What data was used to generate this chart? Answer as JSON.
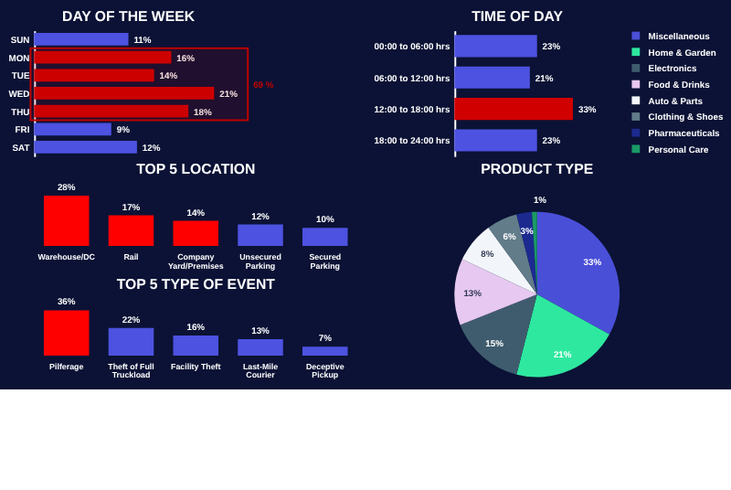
{
  "chart_data": [
    {
      "type": "bar",
      "orientation": "horizontal",
      "title": "DAY OF THE WEEK",
      "categories": [
        "SUN",
        "MON",
        "TUE",
        "WED",
        "THU",
        "FRI",
        "SAT"
      ],
      "values": [
        11,
        16,
        14,
        21,
        18,
        9,
        12
      ],
      "value_labels": [
        "11%",
        "16%",
        "14%",
        "21%",
        "18%",
        "9%",
        "12%"
      ],
      "colors": [
        "#4d52e0",
        "#d00000",
        "#d00000",
        "#d00000",
        "#d00000",
        "#4d52e0",
        "#4d52e0"
      ],
      "bands": [
        {
          "axis": "y",
          "from": "MON",
          "to": "THU",
          "label": "69 %",
          "color": "#c00000"
        }
      ]
    },
    {
      "type": "bar",
      "orientation": "horizontal",
      "title": "TIME OF DAY",
      "categories": [
        "00:00 to 06:00 hrs",
        "06:00 to 12:00 hrs",
        "12:00 to 18:00 hrs",
        "18:00 to 24:00 hrs"
      ],
      "values": [
        23,
        21,
        33,
        23
      ],
      "value_labels": [
        "23%",
        "21%",
        "33%",
        "23%"
      ],
      "colors": [
        "#4d52e0",
        "#4d52e0",
        "#d00000",
        "#4d52e0"
      ]
    },
    {
      "type": "bar",
      "title": "TOP 5 LOCATION",
      "categories": [
        "Warehouse/DC",
        "Rail",
        "Company Yard/Premises",
        "Unsecured Parking",
        "Secured Parking"
      ],
      "values": [
        28,
        17,
        14,
        12,
        10
      ],
      "value_labels": [
        "28%",
        "17%",
        "14%",
        "12%",
        "10%"
      ],
      "colors": [
        "#ff0000",
        "#ff0000",
        "#ff0000",
        "#4d52e0",
        "#4d52e0"
      ]
    },
    {
      "type": "bar",
      "title": "TOP 5 TYPE OF EVENT",
      "categories": [
        "Pilferage",
        "Theft of Full Truckload",
        "Facility Theft",
        "Last-Mile Courier",
        "Deceptive Pickup"
      ],
      "values": [
        36,
        22,
        16,
        13,
        7
      ],
      "value_labels": [
        "36%",
        "22%",
        "16%",
        "13%",
        "7%"
      ],
      "colors": [
        "#ff0000",
        "#4d52e0",
        "#4d52e0",
        "#4d52e0",
        "#4d52e0"
      ]
    },
    {
      "type": "pie",
      "title": "PRODUCT TYPE",
      "legend": "right",
      "categories": [
        "Miscellaneous",
        "Home & Garden",
        "Electronics",
        "Food & Drinks",
        "Auto & Parts",
        "Clothing & Shoes",
        "Pharmaceuticals",
        "Personal Care"
      ],
      "values": [
        33,
        21,
        15,
        13,
        8,
        6,
        3,
        1
      ],
      "value_labels": [
        "33%",
        "21%",
        "15%",
        "13%",
        "8%",
        "6%",
        "3%",
        "1%"
      ],
      "colors": [
        "#4a4fd8",
        "#2ee8a0",
        "#3f5c6e",
        "#e6c8f0",
        "#f2f6fa",
        "#627c8a",
        "#1c2a90",
        "#1a9a66"
      ]
    }
  ]
}
